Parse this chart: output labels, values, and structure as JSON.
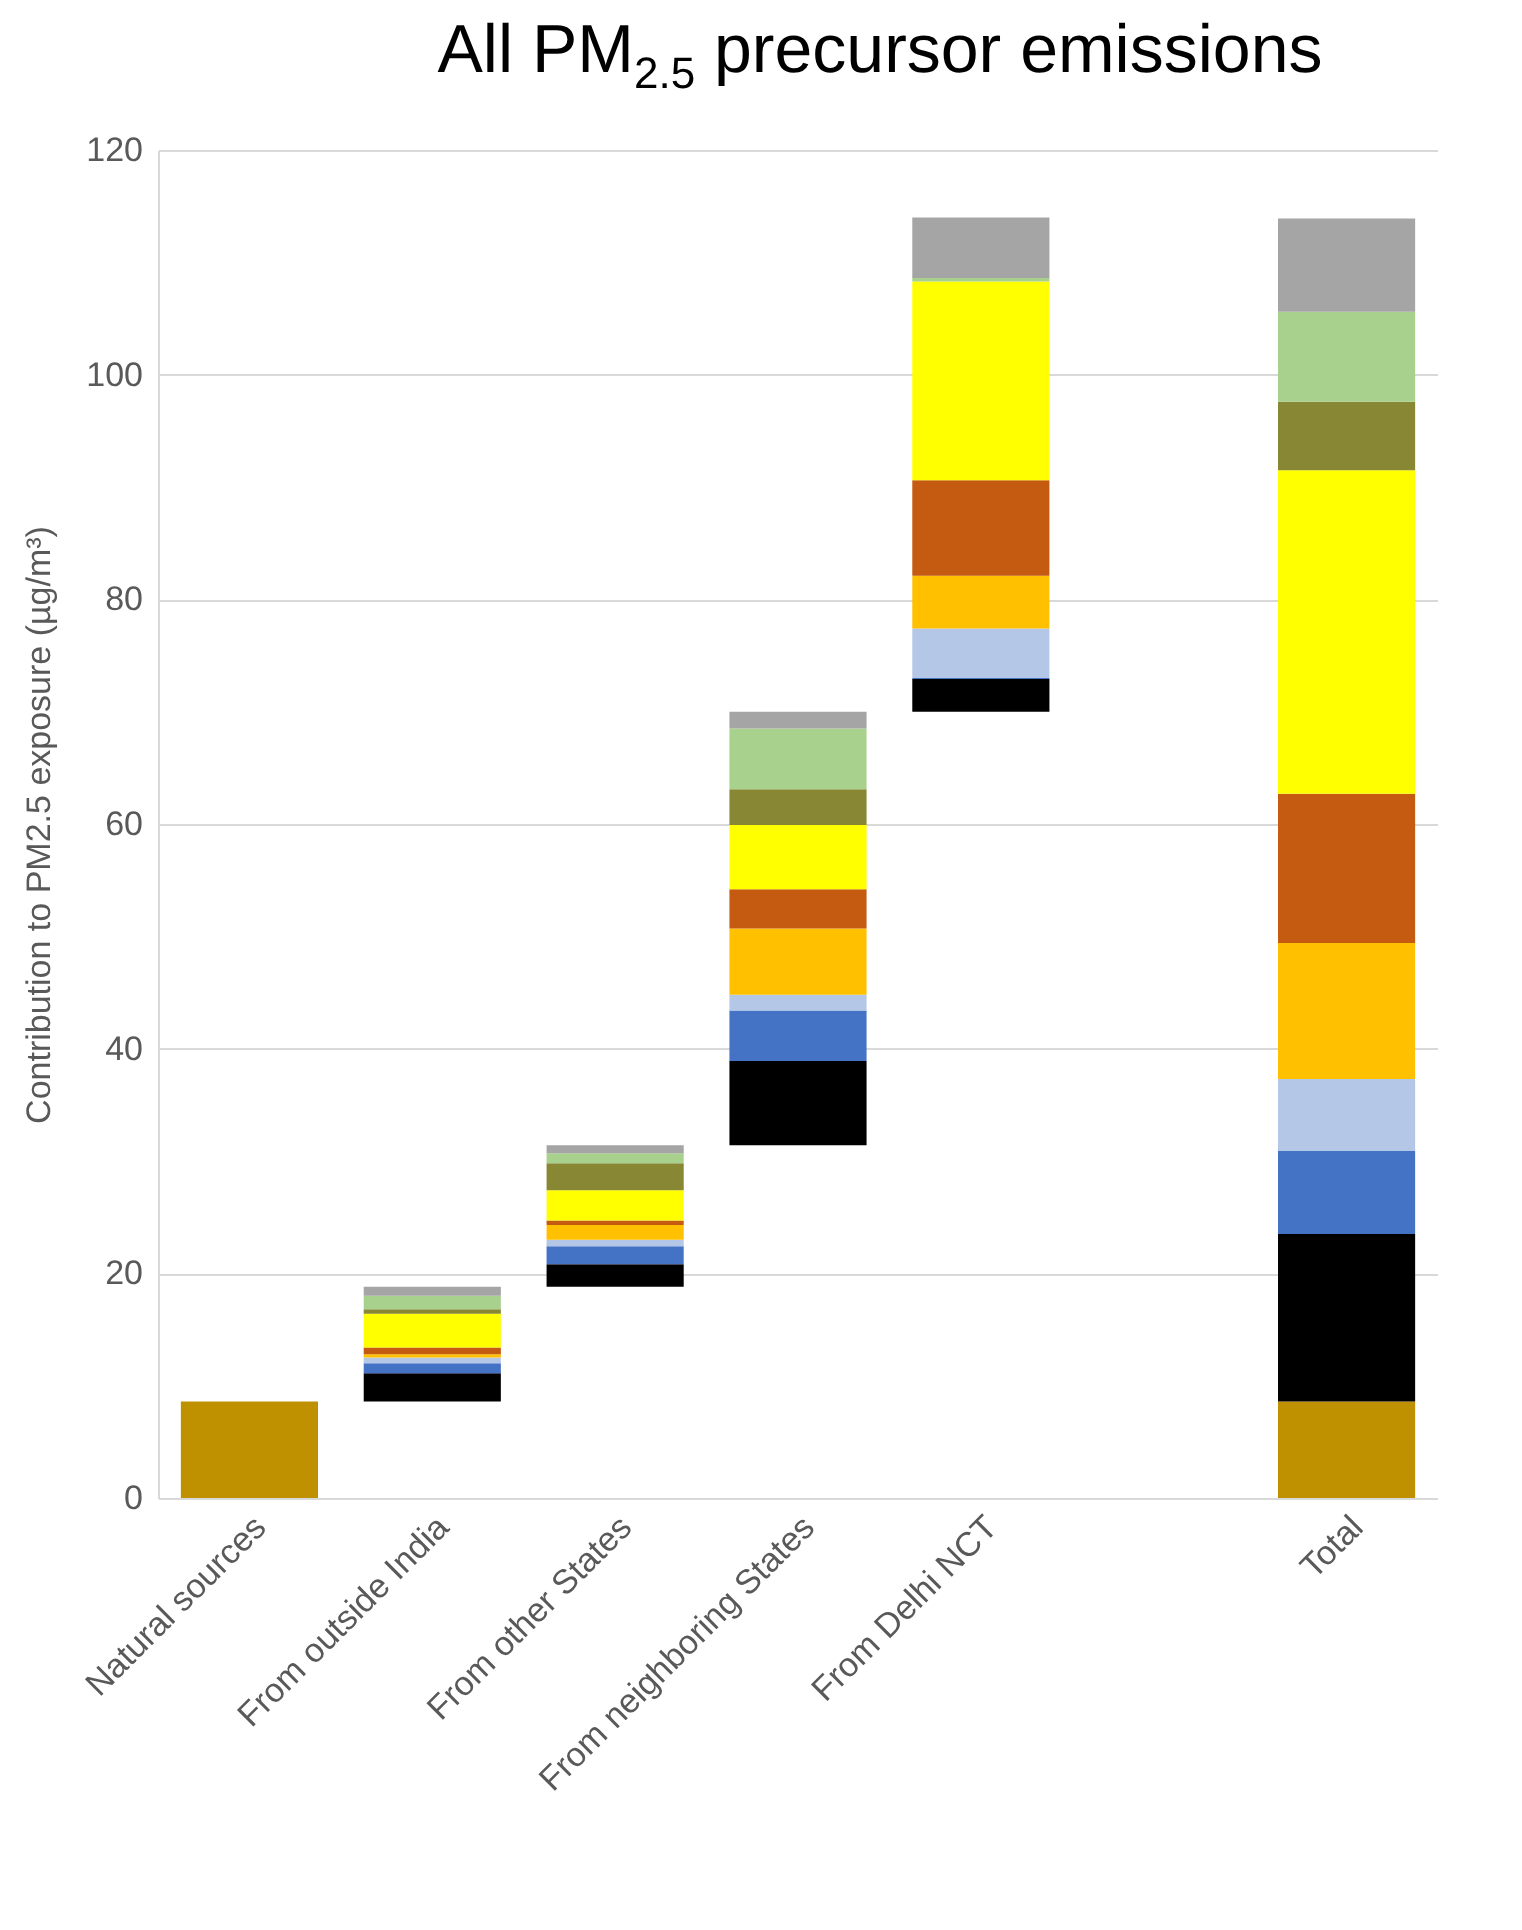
{
  "chart_data": {
    "type": "bar",
    "title": "All PM$_{2.5}$ precursor emissions",
    "ylabel": "Contribution to PM2.5 exposure (µg/m³)",
    "categories": [
      "Natural sources",
      "From outside India",
      "From other States",
      "From neighboring States",
      "From Delhi NCT",
      null,
      "Total"
    ],
    "series": [
      {
        "color": "#bf9000",
        "values": [
          8.6,
          null,
          null,
          null,
          null,
          null,
          8.6
        ],
        "base": [
          0,
          null,
          null,
          null,
          null,
          null,
          0
        ]
      },
      {
        "color": "#000000",
        "values": [
          null,
          2.5,
          2.0,
          7.5,
          2.9,
          null,
          14.9
        ],
        "base": [
          null,
          8.6,
          18.8,
          31.4,
          70.0,
          null,
          8.6
        ]
      },
      {
        "color": "#4472c4",
        "values": [
          null,
          0.9,
          1.6,
          4.5,
          0.1,
          null,
          7.4
        ],
        "base": [
          null,
          11.1,
          20.8,
          38.9,
          72.9,
          null,
          23.5
        ]
      },
      {
        "color": "#b4c7e7",
        "values": [
          null,
          0.5,
          0.6,
          1.4,
          4.4,
          null,
          6.4
        ],
        "base": [
          null,
          12.0,
          22.4,
          43.4,
          73.0,
          null,
          30.9
        ]
      },
      {
        "color": "#ffc000",
        "values": [
          null,
          0.3,
          1.3,
          5.9,
          4.7,
          null,
          12.1
        ],
        "base": [
          null,
          12.5,
          23.0,
          44.8,
          77.4,
          null,
          37.3
        ]
      },
      {
        "color": "#c55a11",
        "values": [
          null,
          0.6,
          0.4,
          3.5,
          8.5,
          null,
          13.3
        ],
        "base": [
          null,
          12.8,
          24.3,
          50.7,
          82.1,
          null,
          49.4
        ]
      },
      {
        "color": "#ffff00",
        "values": [
          null,
          3.0,
          2.7,
          5.7,
          17.7,
          null,
          28.8
        ],
        "base": [
          null,
          13.4,
          24.7,
          54.2,
          90.6,
          null,
          62.7
        ]
      },
      {
        "color": "#888834",
        "values": [
          null,
          0.4,
          2.4,
          3.2,
          null,
          null,
          6.1
        ],
        "base": [
          null,
          16.4,
          27.4,
          59.9,
          null,
          null,
          91.5
        ]
      },
      {
        "color": "#a9d18e",
        "values": [
          null,
          1.2,
          0.9,
          5.4,
          0.3,
          null,
          8.0
        ],
        "base": [
          null,
          16.8,
          29.8,
          63.1,
          108.3,
          null,
          97.6
        ]
      },
      {
        "color": "#a5a5a5",
        "values": [
          null,
          0.8,
          0.7,
          1.5,
          5.4,
          null,
          8.3
        ],
        "base": [
          null,
          18.0,
          30.7,
          68.5,
          108.6,
          null,
          105.6
        ]
      }
    ],
    "ylim": [
      0,
      120
    ],
    "yticks": [
      0,
      20,
      40,
      60,
      80,
      100,
      120
    ],
    "grid": "y",
    "legend": false
  }
}
